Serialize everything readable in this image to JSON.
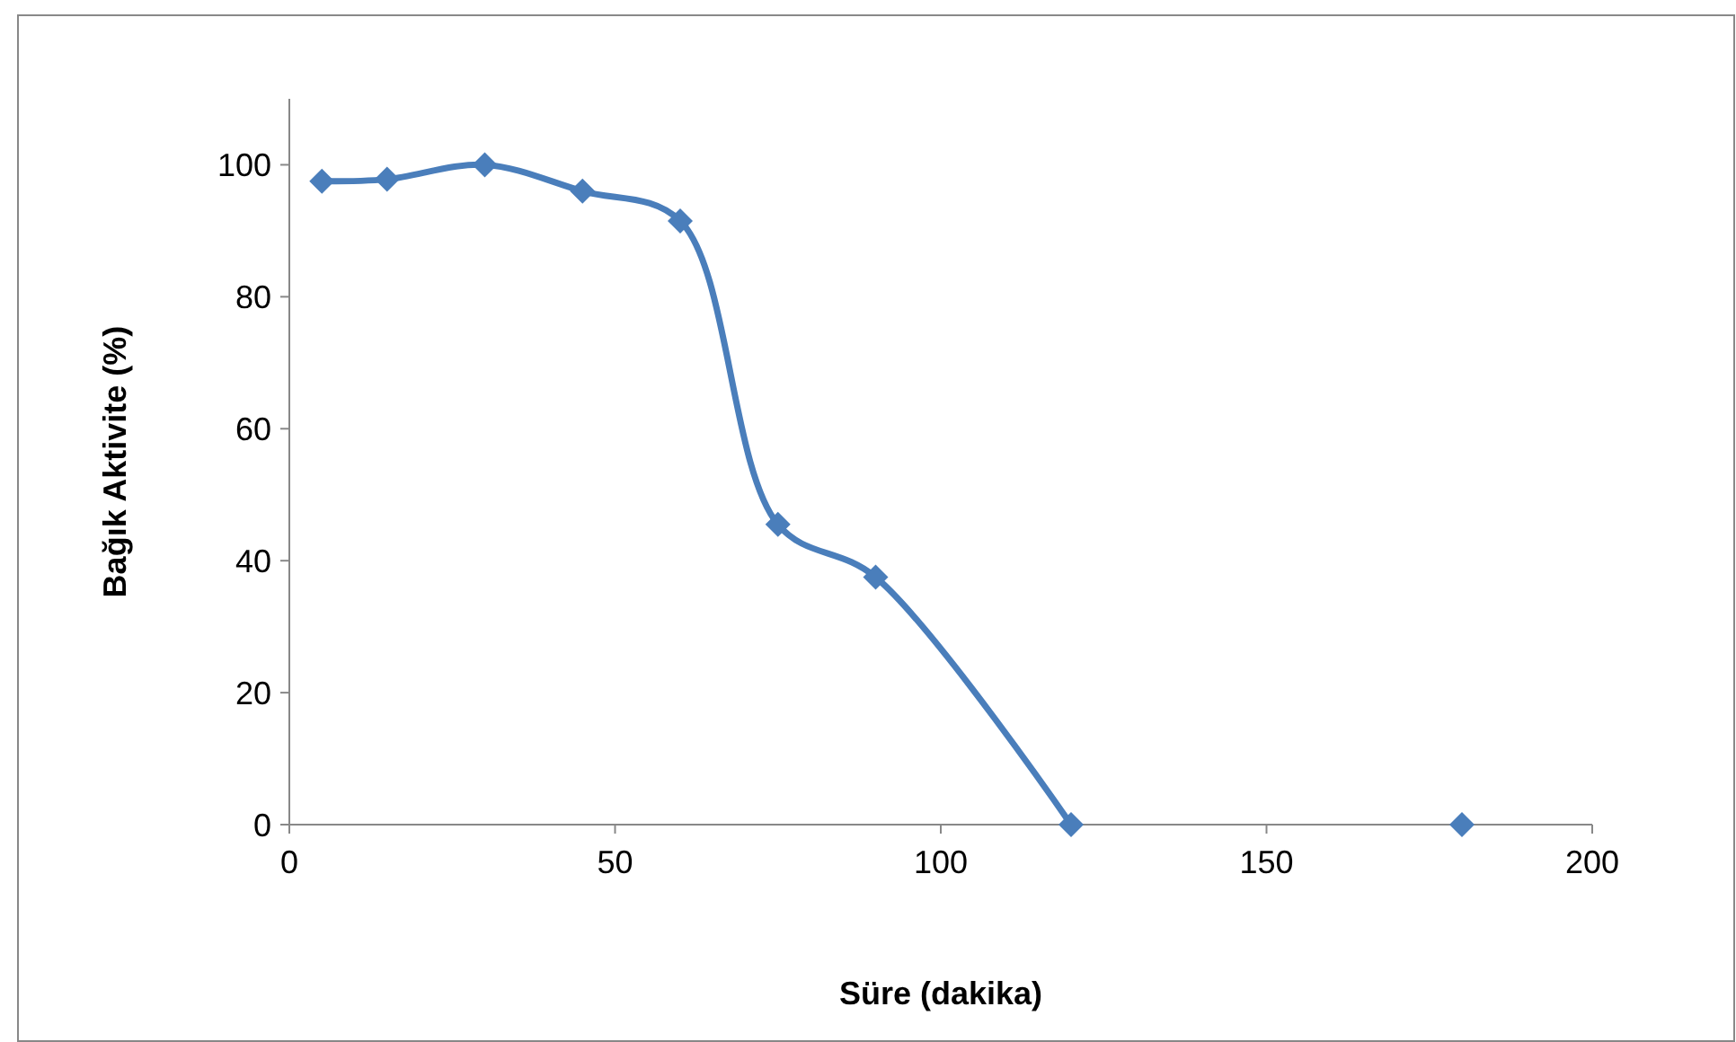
{
  "chart_data": {
    "type": "line",
    "xlabel": "Süre (dakika)",
    "ylabel": "Bağık Aktivite (%)",
    "xlim": [
      0,
      200
    ],
    "xticks": [
      0,
      50,
      100,
      150,
      200
    ],
    "ylim": [
      0,
      110
    ],
    "yticks": [
      0,
      20,
      40,
      60,
      80,
      100
    ],
    "grid": false,
    "marker": "diamond",
    "line_style": "solid",
    "series": [
      {
        "color": "#4a7ebb",
        "x": [
          5,
          15,
          30,
          45,
          60,
          75,
          90,
          120
        ],
        "values": [
          97.5,
          97.8,
          100,
          96,
          91.5,
          45.5,
          37.5,
          0
        ]
      },
      {
        "type": "scatter",
        "color": "#4a7ebb",
        "x": [
          180
        ],
        "values": [
          0
        ]
      }
    ]
  }
}
